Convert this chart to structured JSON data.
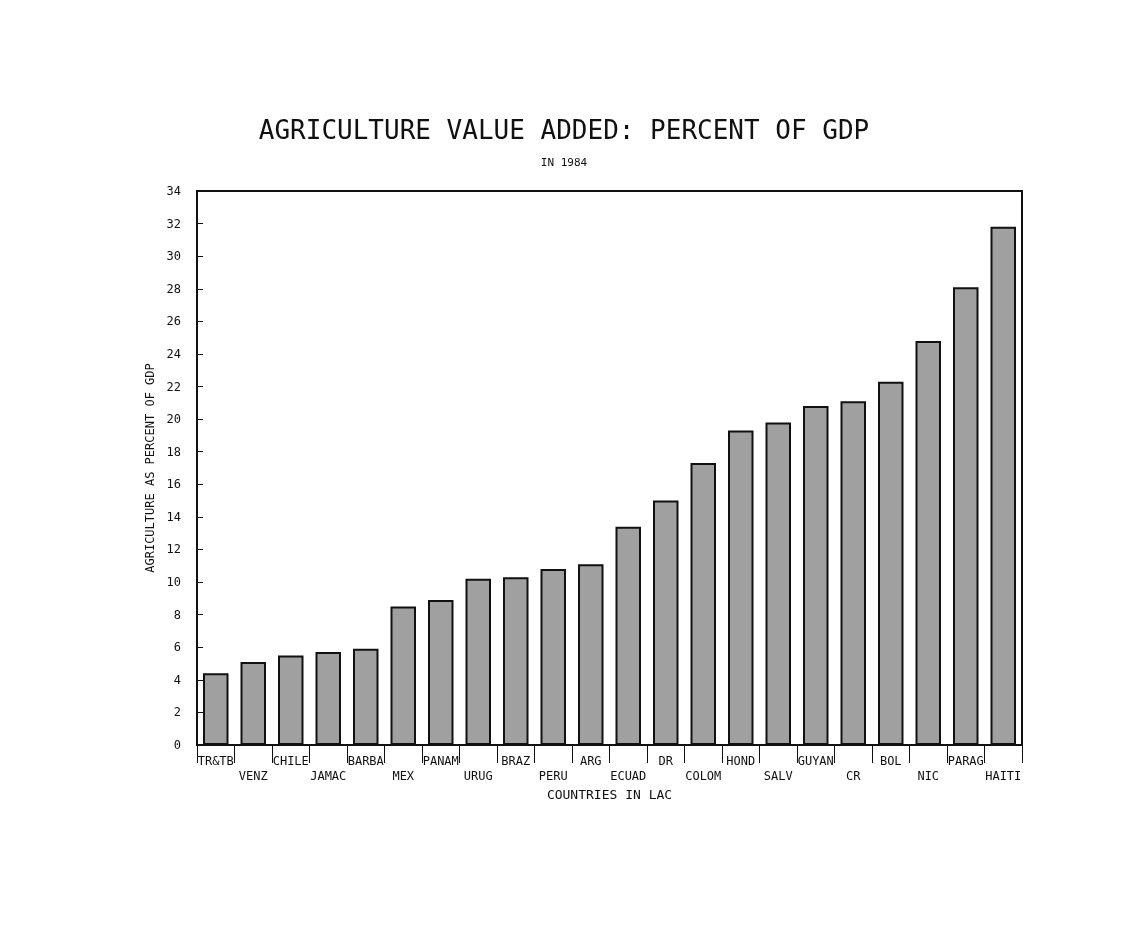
{
  "chart_data": {
    "type": "bar",
    "title": "AGRICULTURE VALUE ADDED: PERCENT OF GDP",
    "subtitle": "IN 1984",
    "xlabel": "COUNTRIES IN LAC",
    "ylabel": "AGRICULTURE AS PERCENT OF GDP",
    "categories": [
      "TR&TB",
      "VENZ",
      "CHILE",
      "JAMAC",
      "BARBA",
      "MEX",
      "PANAM",
      "URUG",
      "BRAZ",
      "PERU",
      "ARG",
      "ECUAD",
      "DR",
      "COLOM",
      "HOND",
      "SALV",
      "GUYAN",
      "CR",
      "BOL",
      "NIC",
      "PARAG",
      "HAITI"
    ],
    "values": [
      4.4,
      5.1,
      5.5,
      5.7,
      5.9,
      8.5,
      8.9,
      10.2,
      10.3,
      10.8,
      11.1,
      13.4,
      15.0,
      17.3,
      19.3,
      19.8,
      20.8,
      21.1,
      22.3,
      24.8,
      28.1,
      31.8
    ],
    "color": "#a0a0a0",
    "ylim": [
      0,
      34
    ],
    "yticks": [
      0,
      2,
      4,
      6,
      8,
      10,
      12,
      14,
      16,
      18,
      20,
      22,
      24,
      26,
      28,
      30,
      32,
      34
    ],
    "grid": false
  }
}
